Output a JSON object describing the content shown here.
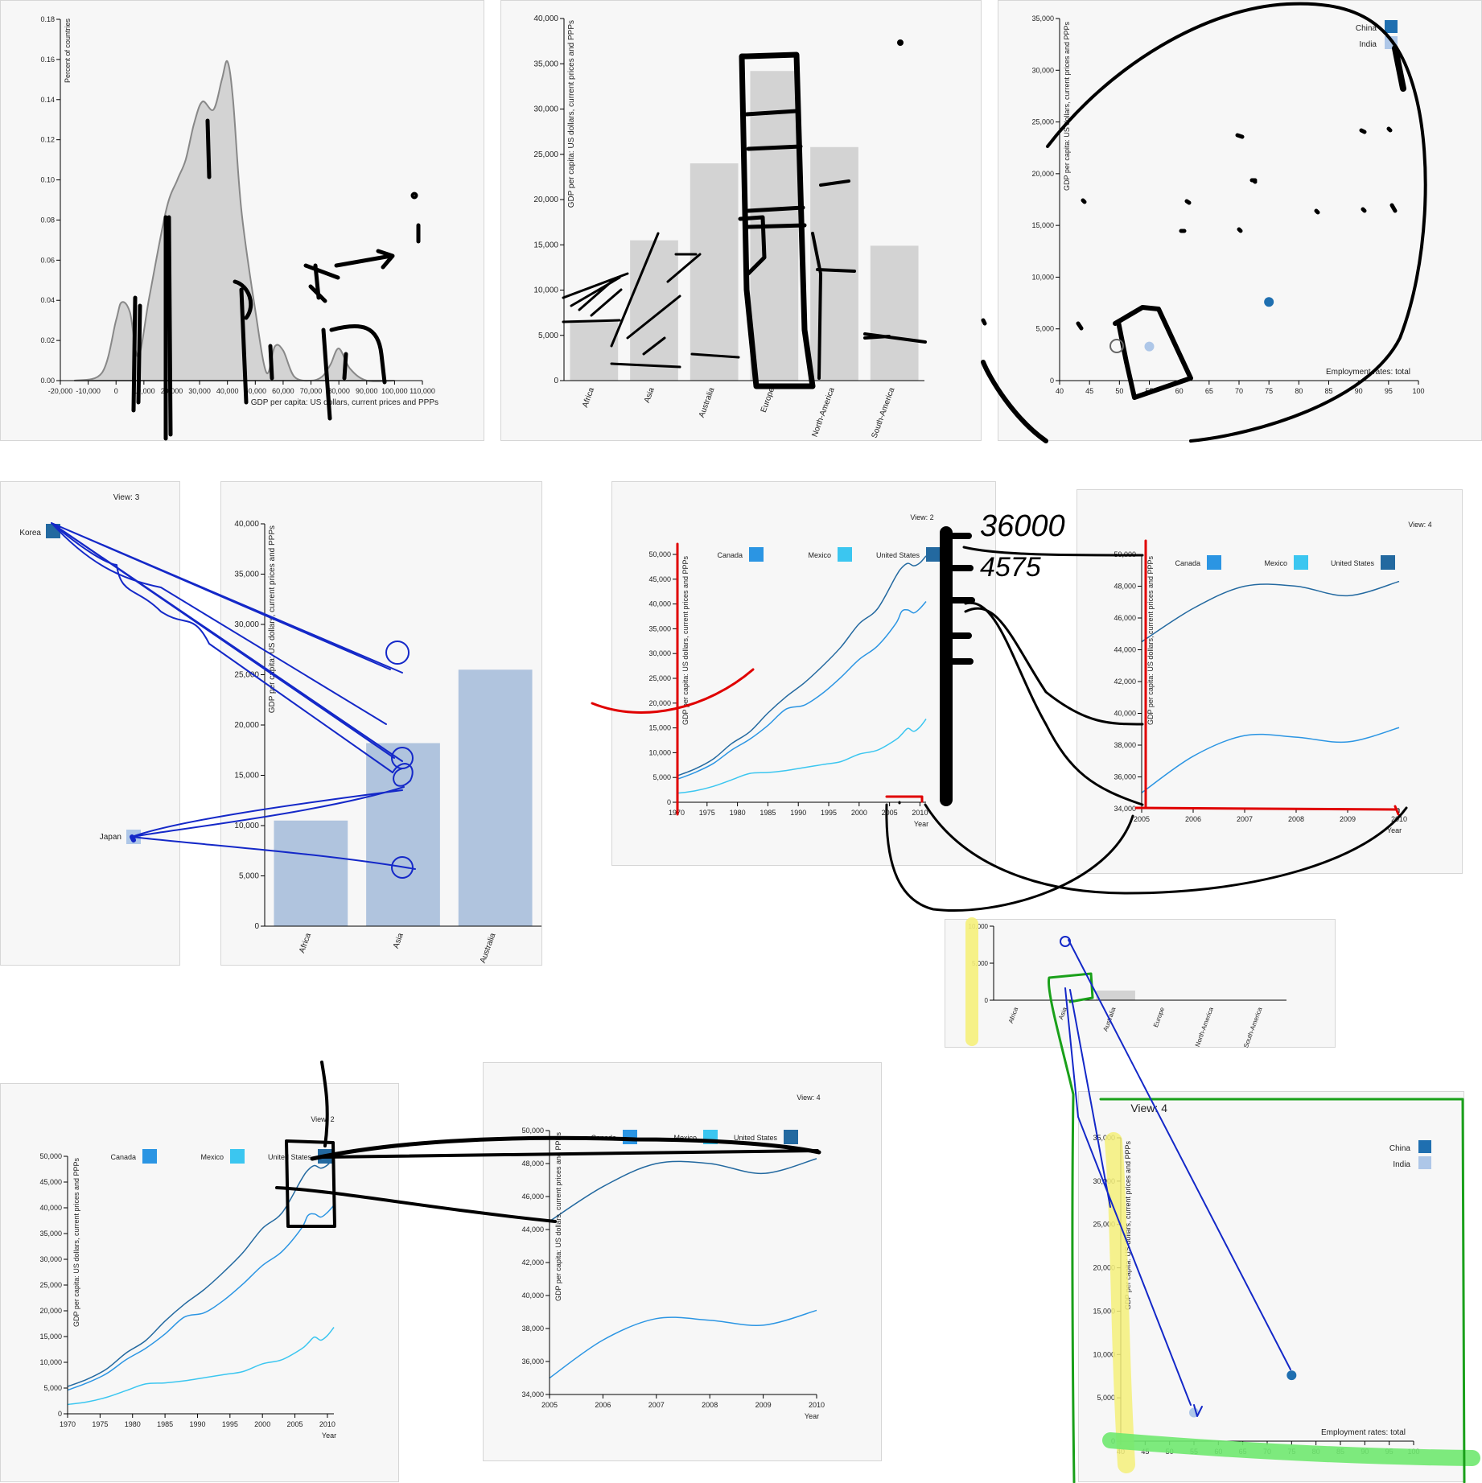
{
  "colors": {
    "panel_bg": "#f7f7f7",
    "bar_gray": "#d3d3d3",
    "bar_blue": "#b0c4de",
    "canada": "#2b95e3",
    "mexico": "#3bc6f0",
    "united_states": "#2369a0",
    "china": "#1f6fb0",
    "india": "#aec7e8",
    "ink_black": "#000000",
    "ink_blue": "#1428c8",
    "ink_red": "#e00000",
    "ink_green": "#1aa01a",
    "highlight_yellow": "#f5f07a",
    "highlight_green": "#6fe86f"
  },
  "chart_data": [
    {
      "id": "density",
      "type": "area",
      "xlabel": "GDP per capita: US dollars, current prices and PPPs",
      "ylabel": "Percent of countries",
      "x_ticks": [
        "-20,000",
        "-10,000",
        "0",
        "10,000",
        "20,000",
        "30,000",
        "40,000",
        "50,000",
        "60,000",
        "70,000",
        "80,000",
        "90,000",
        "100,000",
        "110,000"
      ],
      "y_ticks": [
        "0.00",
        "0.02",
        "0.04",
        "0.06",
        "0.08",
        "0.10",
        "0.12",
        "0.14",
        "0.16",
        "0.18"
      ],
      "xlim": [
        -20000,
        110000
      ],
      "ylim": [
        0,
        0.18
      ],
      "series": [
        {
          "x": [
            -15000,
            -5000,
            0,
            2000,
            5000,
            8000,
            12000,
            18000,
            22000,
            25000,
            28000,
            31000,
            35000,
            38000,
            40000,
            42000,
            45000,
            50000,
            54000,
            57000,
            60000,
            64000,
            70000,
            74000,
            77000,
            80000,
            84000,
            90000,
            100000
          ],
          "y": [
            0,
            0.004,
            0.03,
            0.039,
            0.034,
            0.012,
            0.042,
            0.085,
            0.1,
            0.11,
            0.128,
            0.139,
            0.135,
            0.15,
            0.159,
            0.14,
            0.085,
            0.035,
            0.004,
            0.017,
            0.015,
            0.002,
            0,
            0.002,
            0.008,
            0.016,
            0.006,
            0,
            0
          ]
        }
      ]
    },
    {
      "id": "bar-continents",
      "type": "bar",
      "ylabel": "GDP per capita: US dollars, current prices and PPPs",
      "categories": [
        "Africa",
        "Asia",
        "Australia",
        "Europe",
        "North-America",
        "South-America"
      ],
      "values": [
        6700,
        15500,
        24000,
        34200,
        25800,
        14900
      ],
      "y_ticks": [
        "0",
        "5,000",
        "10,000",
        "15,000",
        "20,000",
        "25,000",
        "30,000",
        "35,000",
        "40,000"
      ],
      "ylim": [
        0,
        40000
      ]
    },
    {
      "id": "scatter-china-india",
      "type": "scatter",
      "xlabel": "Employment rates: total",
      "ylabel": "GDP per capita: US dollars, current prices and PPPs",
      "x_ticks": [
        "40",
        "45",
        "50",
        "55",
        "60",
        "65",
        "70",
        "75",
        "80",
        "85",
        "90",
        "95",
        "100"
      ],
      "y_ticks": [
        "0",
        "5,000",
        "10,000",
        "15,000",
        "20,000",
        "25,000",
        "30,000",
        "35,000"
      ],
      "xlim": [
        40,
        100
      ],
      "ylim": [
        0,
        35000
      ],
      "legend": [
        "China",
        "India"
      ],
      "series": [
        {
          "name": "China",
          "x": [
            75
          ],
          "y": [
            7600
          ]
        },
        {
          "name": "India",
          "x": [
            55
          ],
          "y": [
            3300
          ]
        }
      ]
    },
    {
      "id": "view3-korea-japan",
      "type": "scatter",
      "title": "View: 3",
      "legend": [
        "Korea",
        "Japan"
      ]
    },
    {
      "id": "bar-blue",
      "type": "bar",
      "ylabel": "GDP per capita: US dollars, current prices and PPPs",
      "categories": [
        "Africa",
        "Asia",
        "Australia"
      ],
      "values": [
        10500,
        18200,
        25500
      ],
      "y_ticks": [
        "0",
        "5,000",
        "10,000",
        "15,000",
        "20,000",
        "25,000",
        "30,000",
        "35,000",
        "40,000"
      ],
      "ylim": [
        0,
        40000
      ]
    },
    {
      "id": "lines-full-mid",
      "type": "line",
      "title": "View: 2",
      "xlabel": "Year",
      "ylabel": "GDP per capita: US dollars, current prices and PPPs",
      "x_ticks": [
        "1970",
        "1975",
        "1980",
        "1985",
        "1990",
        "1995",
        "2000",
        "2005",
        "2010"
      ],
      "y_ticks": [
        "0",
        "5,000",
        "10,000",
        "15,000",
        "20,000",
        "25,000",
        "30,000",
        "35,000",
        "40,000",
        "45,000",
        "50,000"
      ],
      "xlim": [
        1970,
        2011
      ],
      "ylim": [
        0,
        50000
      ],
      "legend": [
        "Canada",
        "Mexico",
        "United States"
      ]
    },
    {
      "id": "lines-zoom-mid",
      "type": "line",
      "title": "View: 4",
      "xlabel": "Year",
      "ylabel": "GDP per capita: US dollars, current prices and PPPs",
      "x_ticks": [
        "2005",
        "2006",
        "2007",
        "2008",
        "2009",
        "2010"
      ],
      "y_ticks": [
        "34,000",
        "36,000",
        "38,000",
        "40,000",
        "42,000",
        "44,000",
        "46,000",
        "48,000",
        "50,000"
      ],
      "xlim": [
        2005,
        2010
      ],
      "ylim": [
        34000,
        50000
      ],
      "legend": [
        "Canada",
        "Mexico",
        "United States"
      ]
    },
    {
      "id": "bar-small",
      "type": "bar",
      "categories": [
        "Africa",
        "Asia",
        "Australia",
        "Europe",
        "North-America",
        "South-America"
      ],
      "values": [
        0,
        0,
        1300,
        0,
        0,
        0
      ],
      "y_ticks": [
        "0",
        "5,000",
        "10,000"
      ],
      "ylim": [
        0,
        10000
      ]
    },
    {
      "id": "lines-full-bottom",
      "type": "line",
      "title": "View: 2",
      "xlabel": "Year",
      "ylabel": "GDP per capita: US dollars, current prices and PPPs",
      "x_ticks": [
        "1970",
        "1975",
        "1980",
        "1985",
        "1990",
        "1995",
        "2000",
        "2005",
        "2010"
      ],
      "y_ticks": [
        "0",
        "5,000",
        "10,000",
        "15,000",
        "20,000",
        "25,000",
        "30,000",
        "35,000",
        "40,000",
        "45,000",
        "50,000"
      ],
      "xlim": [
        1970,
        2011
      ],
      "ylim": [
        0,
        50000
      ],
      "legend": [
        "Canada",
        "Mexico",
        "United States"
      ]
    },
    {
      "id": "lines-zoom-bottom",
      "type": "line",
      "title": "View: 4",
      "xlabel": "Year",
      "ylabel": "GDP per capita: US dollars, current prices and PPPs",
      "x_ticks": [
        "2005",
        "2006",
        "2007",
        "2008",
        "2009",
        "2010"
      ],
      "y_ticks": [
        "34,000",
        "36,000",
        "38,000",
        "40,000",
        "42,000",
        "44,000",
        "46,000",
        "48,000",
        "50,000"
      ],
      "xlim": [
        2005,
        2010
      ],
      "ylim": [
        34000,
        50000
      ],
      "legend": [
        "Canada",
        "Mexico",
        "United States"
      ]
    },
    {
      "id": "scatter-view4",
      "type": "scatter",
      "title": "View: 4",
      "xlabel": "Employment rates: total",
      "ylabel": "GDP per capita: US dollars, current prices and PPPs",
      "x_ticks": [
        "40",
        "45",
        "50",
        "55",
        "60",
        "65",
        "70",
        "75",
        "80",
        "85",
        "90",
        "95",
        "100"
      ],
      "y_ticks": [
        "0",
        "5,000",
        "10,000",
        "15,000",
        "20,000",
        "25,000",
        "30,000",
        "35,000"
      ],
      "xlim": [
        40,
        100
      ],
      "ylim": [
        0,
        35000
      ],
      "legend": [
        "China",
        "India"
      ],
      "series": [
        {
          "name": "China",
          "x": [
            75
          ],
          "y": [
            7600
          ]
        },
        {
          "name": "India",
          "x": [
            55
          ],
          "y": [
            3300
          ]
        }
      ]
    }
  ],
  "line_series": {
    "long_x": [
      1970,
      1973,
      1976,
      1979,
      1982,
      1985,
      1988,
      1991,
      1994,
      1997,
      2000,
      2003,
      2006,
      2007,
      2008,
      2009,
      2010,
      2011
    ],
    "long": [
      {
        "name": "United States",
        "values": [
          5300,
          6700,
          8700,
          11800,
          14200,
          18000,
          21300,
          24100,
          27500,
          31300,
          36000,
          39000,
          45500,
          47300,
          48200,
          47700,
          48300,
          49700
        ]
      },
      {
        "name": "Canada",
        "values": [
          4600,
          6000,
          7800,
          10500,
          12700,
          15500,
          18800,
          19600,
          22000,
          25200,
          28800,
          31500,
          36000,
          38500,
          38800,
          38200,
          39100,
          40500
        ]
      },
      {
        "name": "Mexico",
        "values": [
          1800,
          2300,
          3200,
          4500,
          5800,
          6000,
          6400,
          7000,
          7600,
          8200,
          9700,
          10500,
          12600,
          13700,
          14900,
          14300,
          15200,
          16800
        ]
      }
    ],
    "short_x": [
      2005,
      2006,
      2007,
      2008,
      2009,
      2010
    ],
    "short": [
      {
        "name": "United States",
        "values": [
          44500,
          46600,
          48000,
          48000,
          47400,
          48300
        ]
      },
      {
        "name": "Canada",
        "values": [
          35000,
          37300,
          38600,
          38500,
          38200,
          39100
        ]
      }
    ]
  },
  "annotations": {
    "handwritten_1": "36000",
    "handwritten_2": "4575"
  }
}
